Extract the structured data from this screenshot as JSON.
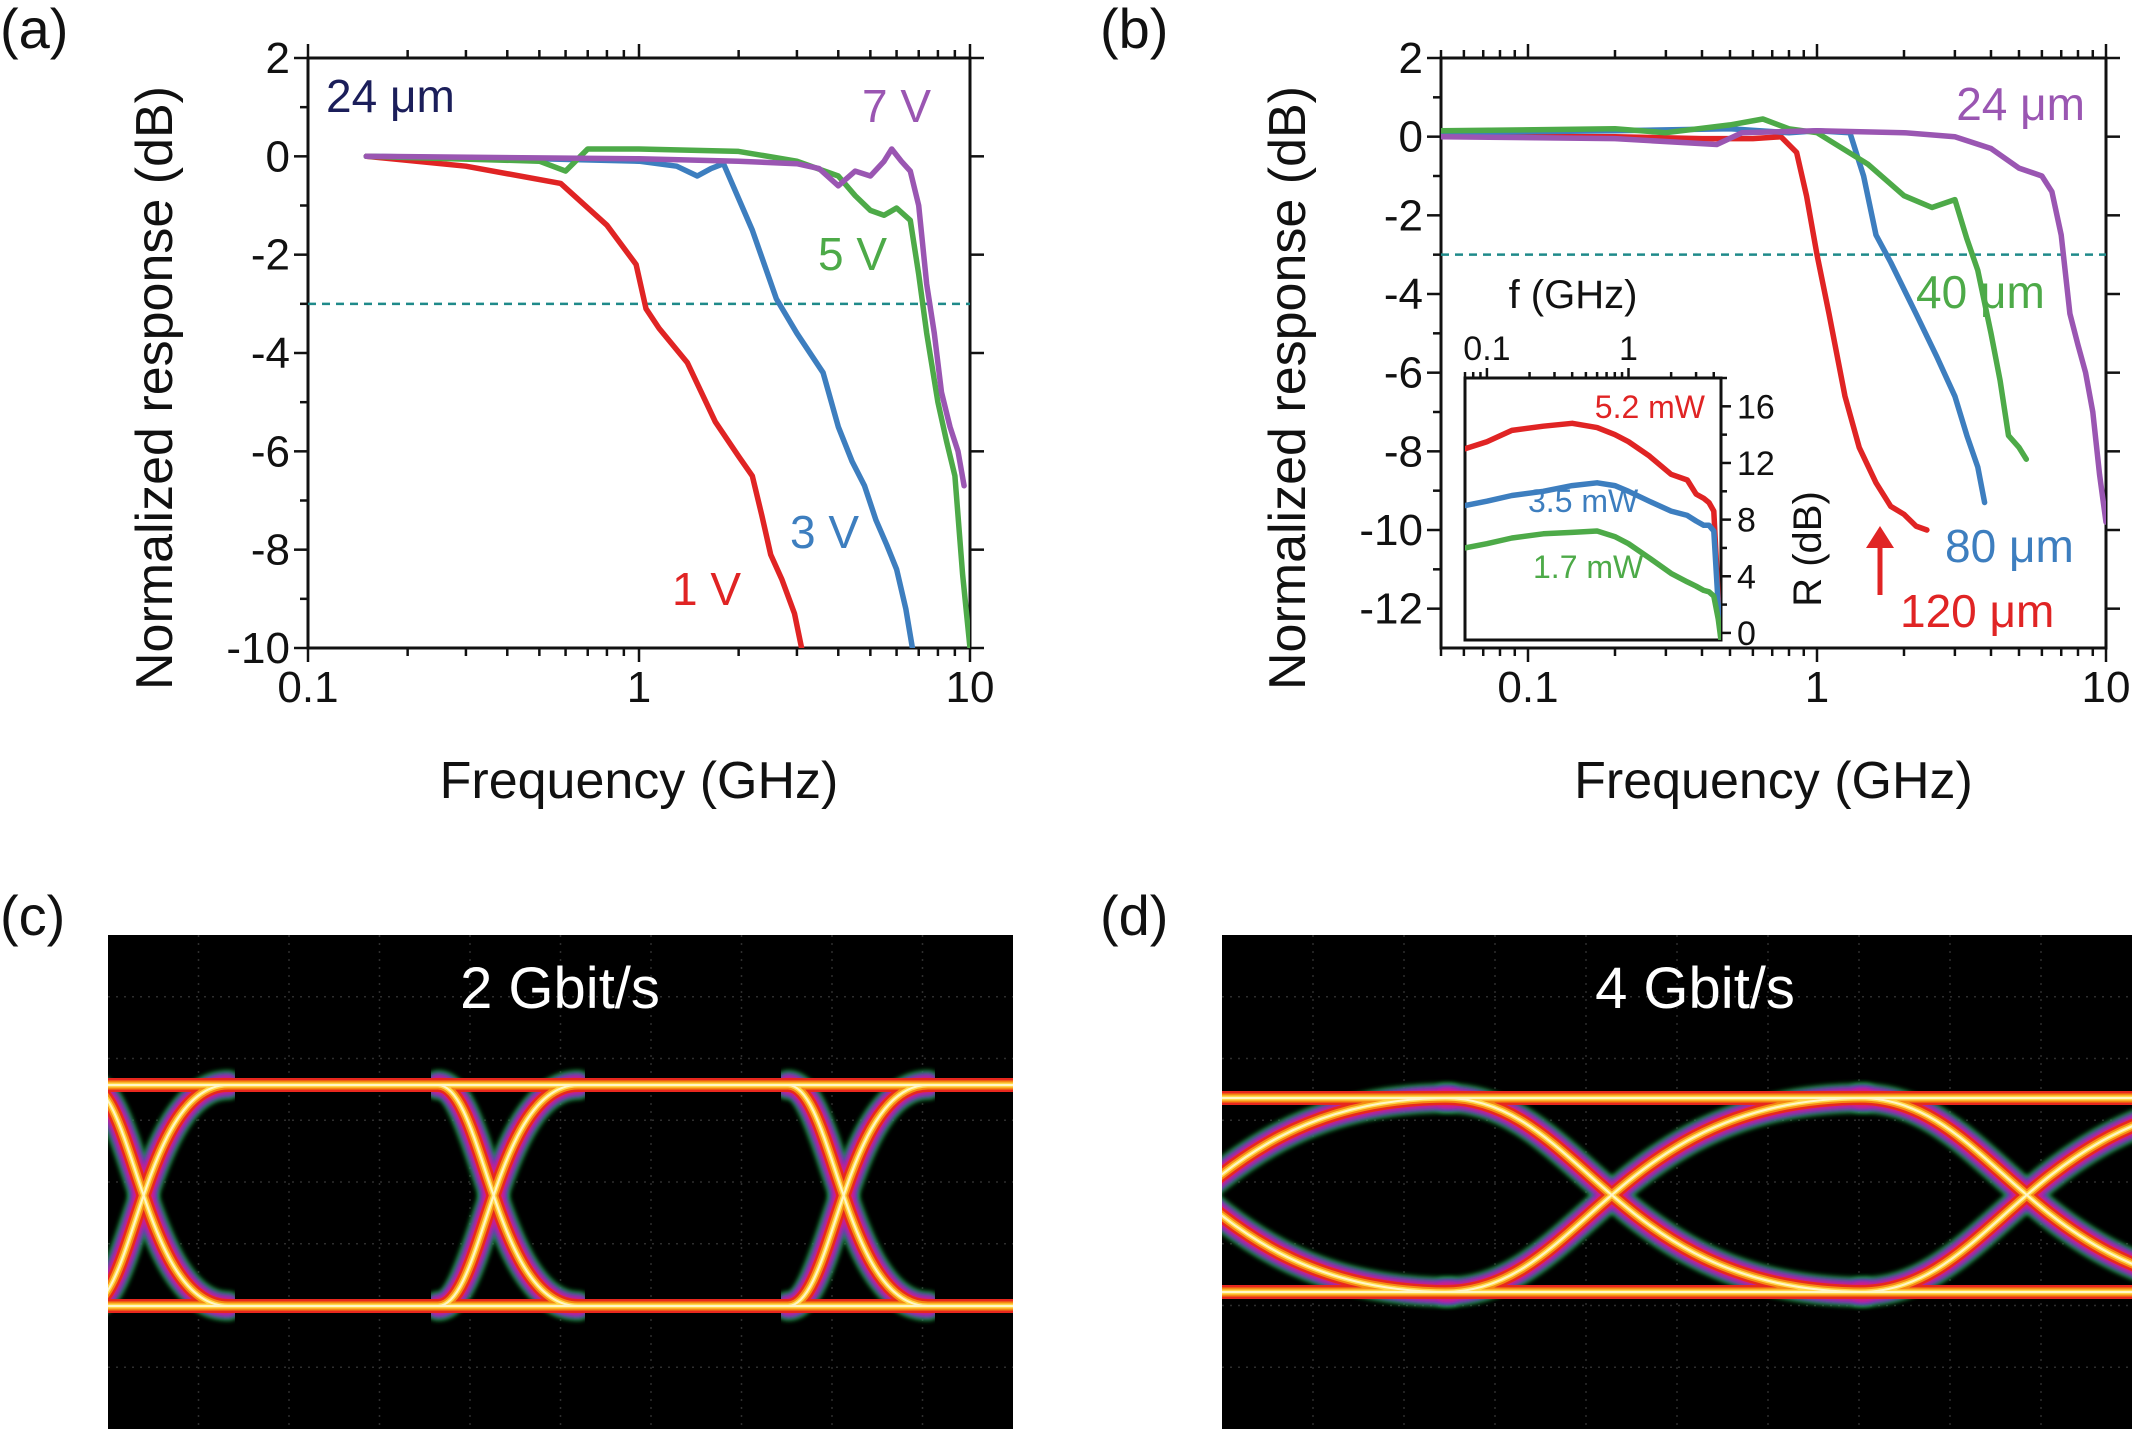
{
  "colors": {
    "red": "#e02424",
    "blue": "#3d7ebf",
    "green": "#4daa48",
    "purple": "#9a56b2",
    "teal": "#1f8a8a",
    "navy": "#1b1e5a"
  },
  "panels": {
    "a": "(a)",
    "b": "(b)",
    "c": "(c)",
    "d": "(d)"
  },
  "eye": {
    "c_title": "2 Gbit/s",
    "d_title": "4 Gbit/s"
  },
  "chart_data": [
    {
      "id": "a",
      "type": "line",
      "title": "",
      "xlabel": "Frequency (GHz)",
      "ylabel": "Normalized response (dB)",
      "xscale": "log",
      "xlim": [
        0.1,
        10
      ],
      "ylim": [
        -10,
        2
      ],
      "xticks": [
        0.1,
        1,
        10
      ],
      "xtick_labels": [
        "0.1",
        "1",
        "10"
      ],
      "yticks": [
        -10,
        -8,
        -6,
        -4,
        -2,
        0,
        2
      ],
      "ytick_labels": [
        "-10",
        "-8",
        "-6",
        "-4",
        "-2",
        "0",
        "2"
      ],
      "reference_line": -3,
      "annotations": [
        {
          "text": "24 μm",
          "color": "navy"
        },
        {
          "text": "7 V",
          "color": "purple"
        },
        {
          "text": "5 V",
          "color": "green"
        },
        {
          "text": "3 V",
          "color": "blue"
        },
        {
          "text": "1 V",
          "color": "red"
        }
      ],
      "series": [
        {
          "name": "1 V",
          "color": "red",
          "x": [
            0.15,
            0.3,
            0.58,
            0.8,
            0.98,
            1.05,
            1.15,
            1.4,
            1.7,
            2.0,
            2.2,
            2.35,
            2.5,
            2.7,
            2.95,
            3.1
          ],
          "y": [
            0,
            -0.2,
            -0.55,
            -1.4,
            -2.2,
            -3.1,
            -3.5,
            -4.2,
            -5.4,
            -6.1,
            -6.5,
            -7.3,
            -8.1,
            -8.6,
            -9.3,
            -10
          ]
        },
        {
          "name": "3 V",
          "color": "blue",
          "x": [
            0.15,
            0.5,
            1.0,
            1.3,
            1.5,
            1.65,
            1.8,
            2.2,
            2.6,
            3.0,
            3.6,
            4.0,
            4.4,
            4.8,
            5.2,
            5.6,
            6.0,
            6.4,
            6.7
          ],
          "y": [
            0,
            -0.05,
            -0.1,
            -0.2,
            -0.4,
            -0.25,
            -0.15,
            -1.5,
            -2.9,
            -3.6,
            -4.4,
            -5.5,
            -6.2,
            -6.7,
            -7.4,
            -7.9,
            -8.4,
            -9.2,
            -10
          ]
        },
        {
          "name": "5 V",
          "color": "green",
          "x": [
            0.15,
            0.5,
            0.6,
            0.7,
            1.0,
            2.0,
            3.0,
            4.0,
            4.5,
            5.0,
            5.5,
            6.0,
            6.6,
            7.0,
            7.4,
            8.0,
            8.5,
            9.0,
            9.5,
            10
          ],
          "y": [
            0,
            -0.1,
            -0.3,
            0.15,
            0.15,
            0.1,
            -0.1,
            -0.4,
            -0.8,
            -1.1,
            -1.2,
            -1.05,
            -1.3,
            -2.4,
            -3.6,
            -5.0,
            -5.8,
            -6.5,
            -8.5,
            -10
          ]
        },
        {
          "name": "7 V",
          "color": "purple",
          "x": [
            0.15,
            1.0,
            2.0,
            3.0,
            3.5,
            4.0,
            4.5,
            5.0,
            5.5,
            5.8,
            6.2,
            6.6,
            7.0,
            7.4,
            7.8,
            8.2,
            8.7,
            9.2,
            9.6
          ],
          "y": [
            0,
            -0.05,
            -0.1,
            -0.15,
            -0.25,
            -0.6,
            -0.3,
            -0.4,
            -0.1,
            0.15,
            -0.1,
            -0.3,
            -1.0,
            -2.6,
            -3.6,
            -4.8,
            -5.5,
            -6.0,
            -6.7
          ]
        }
      ]
    },
    {
      "id": "b",
      "type": "line",
      "title": "",
      "xlabel": "Frequency (GHz)",
      "ylabel": "Normalized response (dB)",
      "xscale": "log",
      "xlim": [
        0.05,
        10
      ],
      "ylim": [
        -13,
        2
      ],
      "xticks": [
        0.1,
        1,
        10
      ],
      "xtick_labels": [
        "0.1",
        "1",
        "10"
      ],
      "yticks": [
        -12,
        -10,
        -8,
        -6,
        -4,
        -2,
        0,
        2
      ],
      "ytick_labels": [
        "-12",
        "-10",
        "-8",
        "-6",
        "-4",
        "-2",
        "0",
        "2"
      ],
      "reference_line": -3,
      "annotations": [
        {
          "text": "24 μm",
          "color": "purple"
        },
        {
          "text": "40 μm",
          "color": "green"
        },
        {
          "text": "80 μm",
          "color": "blue"
        },
        {
          "text": "120 μm",
          "color": "red"
        }
      ],
      "series": [
        {
          "name": "120 μm",
          "color": "red",
          "x": [
            0.05,
            0.2,
            0.4,
            0.6,
            0.75,
            0.85,
            0.92,
            1.0,
            1.1,
            1.25,
            1.4,
            1.6,
            1.8,
            2.0,
            2.2,
            2.4
          ],
          "y": [
            0,
            0,
            -0.05,
            -0.05,
            0,
            -0.4,
            -1.5,
            -3.0,
            -4.5,
            -6.6,
            -7.9,
            -8.8,
            -9.4,
            -9.6,
            -9.9,
            -10.0
          ]
        },
        {
          "name": "80 μm",
          "color": "blue",
          "x": [
            0.05,
            0.2,
            0.5,
            0.8,
            1.0,
            1.3,
            1.45,
            1.6,
            1.8,
            2.2,
            2.6,
            3.0,
            3.3,
            3.6,
            3.8
          ],
          "y": [
            0.1,
            0.15,
            0.2,
            0.1,
            0.15,
            0.1,
            -1.0,
            -2.5,
            -3.2,
            -4.5,
            -5.6,
            -6.6,
            -7.6,
            -8.4,
            -9.3
          ]
        },
        {
          "name": "40 μm",
          "color": "green",
          "x": [
            0.05,
            0.2,
            0.3,
            0.5,
            0.65,
            0.8,
            1.0,
            1.5,
            2.0,
            2.5,
            3.0,
            3.3,
            3.6,
            4.0,
            4.3,
            4.6,
            5.0,
            5.3
          ],
          "y": [
            0.15,
            0.2,
            0.1,
            0.3,
            0.45,
            0.2,
            0.1,
            -0.7,
            -1.5,
            -1.8,
            -1.6,
            -2.6,
            -3.4,
            -5.0,
            -6.2,
            -7.6,
            -7.9,
            -8.2
          ]
        },
        {
          "name": "24 μm",
          "color": "purple",
          "x": [
            0.05,
            0.2,
            0.45,
            0.55,
            1.0,
            2.0,
            3.0,
            4.0,
            5.0,
            6.0,
            6.5,
            7.0,
            7.5,
            8.0,
            8.5,
            9.0,
            9.5,
            10
          ],
          "y": [
            0,
            -0.05,
            -0.2,
            0.1,
            0.15,
            0.1,
            0,
            -0.3,
            -0.8,
            -1.0,
            -1.4,
            -2.5,
            -4.5,
            -5.3,
            -6.0,
            -7.0,
            -8.6,
            -9.8
          ]
        }
      ]
    },
    {
      "id": "b-inset",
      "type": "line",
      "title": "",
      "xlabel": "f (GHz)",
      "ylabel": "R (dB)",
      "xscale": "log",
      "xlim": [
        0.07,
        4.5
      ],
      "ylim": [
        -0.5,
        18
      ],
      "xticks": [
        0.1,
        1
      ],
      "xtick_labels": [
        "0.1",
        "1"
      ],
      "yticks": [
        0,
        4,
        8,
        12,
        16
      ],
      "ytick_labels": [
        "0",
        "4",
        "8",
        "12",
        "16"
      ],
      "annotations": [
        {
          "text": "5.2 mW",
          "color": "red"
        },
        {
          "text": "3.5 mW",
          "color": "blue"
        },
        {
          "text": "1.7 mW",
          "color": "green"
        }
      ],
      "series": [
        {
          "name": "5.2 mW",
          "color": "red",
          "x": [
            0.07,
            0.1,
            0.15,
            0.25,
            0.4,
            0.6,
            0.8,
            1.0,
            1.4,
            2.0,
            2.6,
            3.0,
            3.4,
            3.7,
            4.0,
            4.3,
            4.5
          ],
          "y": [
            13.0,
            13.5,
            14.3,
            14.6,
            14.8,
            14.5,
            14.0,
            13.5,
            12.5,
            11.2,
            10.8,
            9.8,
            9.5,
            9.2,
            8.6,
            2.5,
            -0.5
          ]
        },
        {
          "name": "3.5 mW",
          "color": "blue",
          "x": [
            0.07,
            0.1,
            0.15,
            0.25,
            0.4,
            0.6,
            0.8,
            1.0,
            1.4,
            2.0,
            2.6,
            3.0,
            3.4,
            3.7,
            4.0,
            4.3,
            4.5
          ],
          "y": [
            9.0,
            9.3,
            9.7,
            10.0,
            10.4,
            10.6,
            10.4,
            10.0,
            9.3,
            8.6,
            8.3,
            7.9,
            7.6,
            7.6,
            7.2,
            2.0,
            -0.5
          ]
        },
        {
          "name": "1.7 mW",
          "color": "green",
          "x": [
            0.07,
            0.1,
            0.15,
            0.25,
            0.4,
            0.6,
            0.8,
            1.0,
            1.4,
            2.0,
            2.6,
            3.0,
            3.4,
            3.7,
            4.0,
            4.3,
            4.5
          ],
          "y": [
            6.0,
            6.3,
            6.7,
            7.0,
            7.1,
            7.2,
            6.8,
            6.3,
            5.3,
            4.2,
            3.6,
            3.3,
            3.0,
            2.9,
            2.6,
            1.0,
            -0.5
          ]
        }
      ]
    }
  ]
}
